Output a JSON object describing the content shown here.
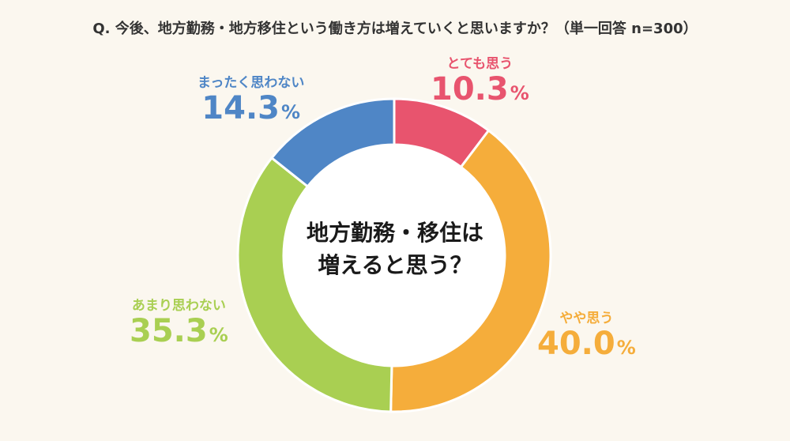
{
  "question": "Q. 今後、地方勤務・地方移住という働き方は増えていくと思いますか？（単一回答 n=300）",
  "center_text": {
    "line1": "地方勤務・移住は",
    "line2": "増えると思う？"
  },
  "chart_data": {
    "type": "pie",
    "title": "Q. 今後、地方勤務・地方移住という働き方は増えていくと思いますか？（単一回答 n=300）",
    "unit": "%",
    "slices": [
      {
        "name": "とても思う",
        "value": 10.3,
        "color": "#e8546e"
      },
      {
        "name": "やや思う",
        "value": 40.0,
        "color": "#f5ad3b"
      },
      {
        "name": "あまり思わない",
        "value": 35.3,
        "color": "#a9cf52"
      },
      {
        "name": "まったく思わない",
        "value": 14.3,
        "color": "#4f86c6"
      }
    ]
  }
}
